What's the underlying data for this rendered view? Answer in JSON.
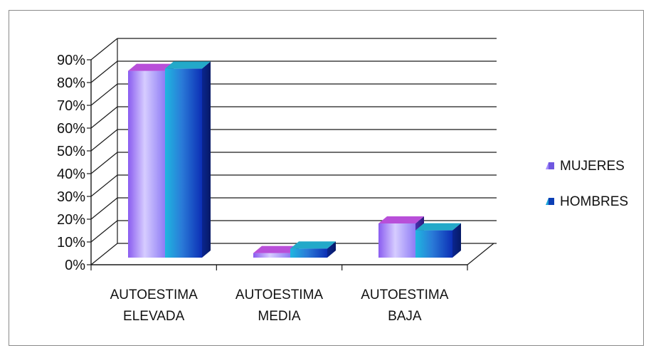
{
  "chart_data": {
    "type": "bar",
    "title": "",
    "xlabel": "",
    "ylabel": "",
    "ylim": [
      0,
      90
    ],
    "y_ticks": [
      "0%",
      "10%",
      "20%",
      "30%",
      "40%",
      "50%",
      "60%",
      "70%",
      "80%",
      "90%"
    ],
    "categories": [
      [
        "AUTOESTIMA",
        "ELEVADA"
      ],
      [
        "AUTOESTIMA",
        "MEDIA"
      ],
      [
        "AUTOESTIMA",
        "BAJA"
      ]
    ],
    "series": [
      {
        "name": "MUJERES",
        "values": [
          82,
          2,
          15
        ],
        "color": "#a58cff"
      },
      {
        "name": "HOMBRES",
        "values": [
          83,
          4,
          12
        ],
        "color": "#1ea3d8"
      }
    ],
    "legend_position": "right",
    "grid": true,
    "style": "3d-clustered-column"
  }
}
